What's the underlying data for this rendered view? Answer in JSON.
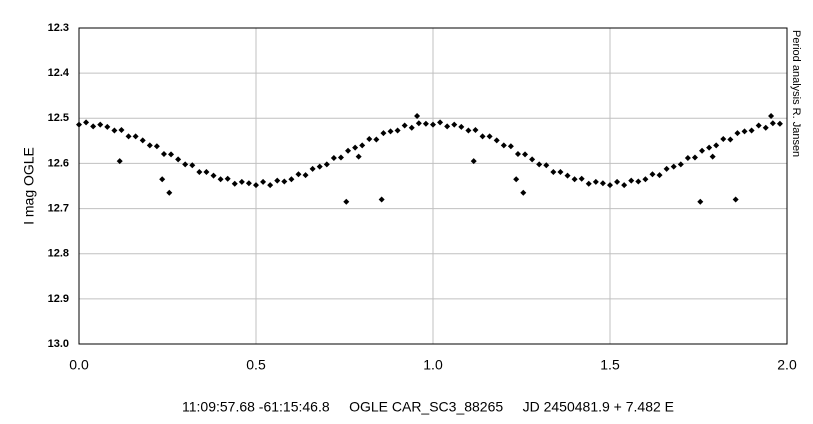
{
  "chart_data": {
    "type": "scatter",
    "title": "11:09:57.68 -61:15:46.8     OGLE CAR_SC3_88265     JD 2450481.9 + 7.482 E",
    "ylabel": "I mag OGLE",
    "annotation": "Period analysis R. Jansen",
    "color": "#000000",
    "grid": true,
    "y_inverted": true,
    "xlim": [
      0,
      2
    ],
    "xticks": [
      {
        "value": 0,
        "label": "0.0"
      },
      0.5,
      {
        "value": 1,
        "label": "1.0"
      },
      1.5,
      {
        "value": 2,
        "label": "2.0"
      }
    ],
    "ylim": [
      12.3,
      13
    ],
    "yticks": [
      12.3,
      12.4,
      12.5,
      12.6,
      12.7,
      12.8,
      12.9,
      {
        "value": 13,
        "label": "13.0"
      }
    ],
    "x": [
      0,
      0.02,
      0.04,
      0.06,
      0.08,
      0.1,
      0.12,
      0.14,
      0.16,
      0.18,
      0.2,
      0.22,
      0.24,
      0.26,
      0.28,
      0.3,
      0.32,
      0.34,
      0.36,
      0.38,
      0.4,
      0.42,
      0.44,
      0.46,
      0.48,
      0.5,
      0.52,
      0.54,
      0.56,
      0.58,
      0.6,
      0.62,
      0.64,
      0.66,
      0.68,
      0.7,
      0.72,
      0.74,
      0.76,
      0.78,
      0.8,
      0.82,
      0.84,
      0.86,
      0.88,
      0.9,
      0.92,
      0.94,
      0.96,
      0.98,
      0.255,
      0.235,
      0.755,
      0.855,
      0.79,
      0.115,
      0.955,
      1,
      1.02,
      1.04,
      1.06,
      1.08,
      1.1,
      1.12,
      1.14,
      1.16,
      1.18,
      1.2,
      1.22,
      1.24,
      1.26,
      1.28,
      1.3,
      1.32,
      1.34,
      1.36,
      1.38,
      1.4,
      1.42,
      1.44,
      1.46,
      1.48,
      1.5,
      1.52,
      1.54,
      1.56,
      1.58,
      1.6,
      1.62,
      1.64,
      1.66,
      1.68,
      1.7,
      1.72,
      1.74,
      1.76,
      1.78,
      1.8,
      1.82,
      1.84,
      1.86,
      1.88,
      1.9,
      1.92,
      1.94,
      1.96,
      1.98,
      1.255,
      1.235,
      1.755,
      1.855,
      1.79,
      1.115,
      1.955
    ],
    "values": [
      12.514,
      12.509,
      12.518,
      12.514,
      12.519,
      12.527,
      12.526,
      12.54,
      12.54,
      12.549,
      12.56,
      12.562,
      12.579,
      12.58,
      12.591,
      12.602,
      12.604,
      12.619,
      12.619,
      12.627,
      12.635,
      12.634,
      12.645,
      12.641,
      12.644,
      12.648,
      12.641,
      12.648,
      12.638,
      12.64,
      12.635,
      12.624,
      12.626,
      12.612,
      12.607,
      12.602,
      12.588,
      12.587,
      12.572,
      12.565,
      12.56,
      12.546,
      12.547,
      12.533,
      12.529,
      12.527,
      12.516,
      12.521,
      12.511,
      12.512,
      12.665,
      12.635,
      12.685,
      12.68,
      12.585,
      12.595,
      12.495,
      12.514,
      12.509,
      12.518,
      12.514,
      12.519,
      12.527,
      12.526,
      12.54,
      12.54,
      12.549,
      12.56,
      12.562,
      12.579,
      12.58,
      12.591,
      12.602,
      12.604,
      12.619,
      12.619,
      12.627,
      12.635,
      12.634,
      12.645,
      12.641,
      12.644,
      12.648,
      12.641,
      12.648,
      12.638,
      12.64,
      12.635,
      12.624,
      12.626,
      12.612,
      12.607,
      12.602,
      12.588,
      12.587,
      12.572,
      12.565,
      12.56,
      12.546,
      12.547,
      12.533,
      12.529,
      12.527,
      12.516,
      12.521,
      12.511,
      12.512,
      12.665,
      12.635,
      12.685,
      12.68,
      12.585,
      12.595,
      12.495
    ]
  }
}
